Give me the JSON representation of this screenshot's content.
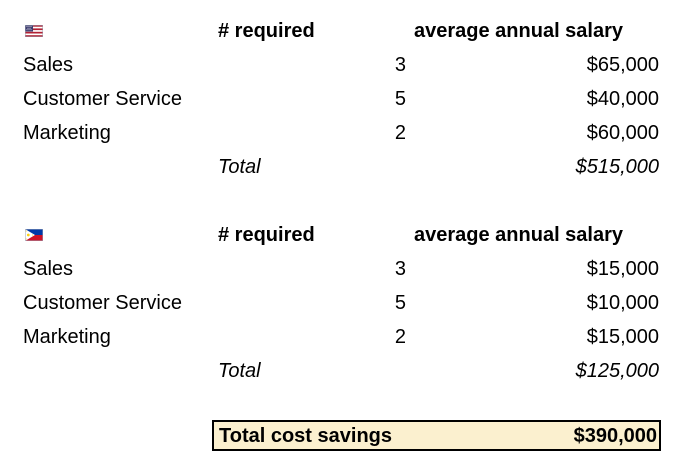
{
  "tables": [
    {
      "flag_icon": "us-flag-icon",
      "header": {
        "required": "# required",
        "salary": "average annual salary"
      },
      "rows": [
        {
          "department": "Sales",
          "required": "3",
          "salary": "$65,000"
        },
        {
          "department": "Customer Service",
          "required": "5",
          "salary": "$40,000"
        },
        {
          "department": "Marketing",
          "required": "2",
          "salary": "$60,000"
        }
      ],
      "total": {
        "label": "Total",
        "value": "$515,000"
      }
    },
    {
      "flag_icon": "philippines-flag-icon",
      "header": {
        "required": "# required",
        "salary": "average annual salary"
      },
      "rows": [
        {
          "department": "Sales",
          "required": "3",
          "salary": "$15,000"
        },
        {
          "department": "Customer Service",
          "required": "5",
          "salary": "$10,000"
        },
        {
          "department": "Marketing",
          "required": "2",
          "salary": "$15,000"
        }
      ],
      "total": {
        "label": "Total",
        "value": "$125,000"
      }
    }
  ],
  "savings": {
    "label": "Total cost savings",
    "value": "$390,000"
  },
  "colors": {
    "savings_background": "#fbf0cf",
    "us_flag_red": "#b22234",
    "us_flag_blue": "#3c3b6e",
    "ph_flag_blue": "#0038a8",
    "ph_flag_red": "#ce1126",
    "ph_flag_yellow": "#fcd116"
  }
}
